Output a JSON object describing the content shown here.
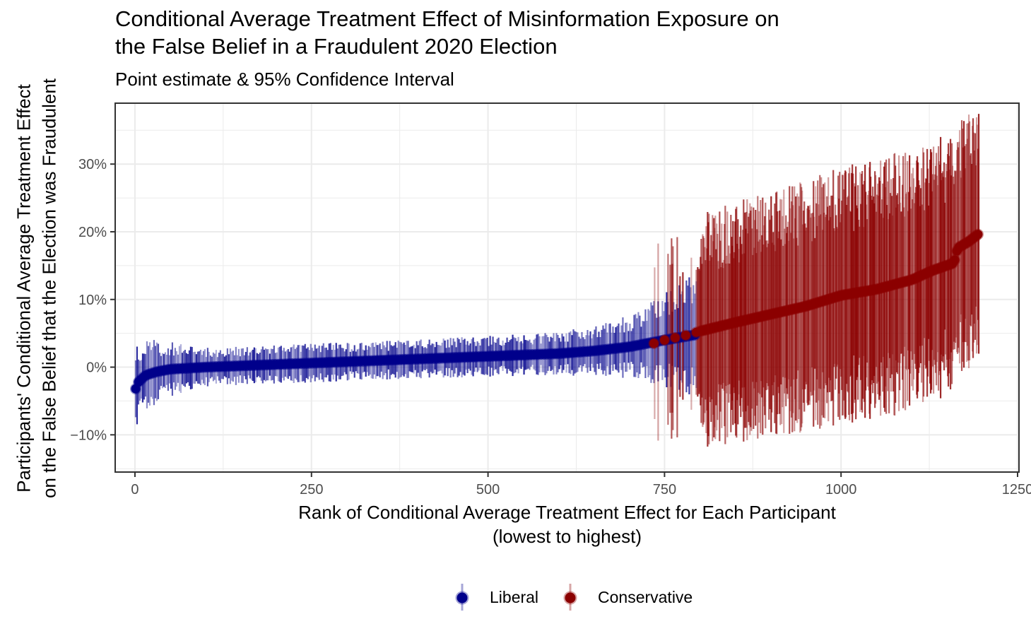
{
  "chart_data": {
    "type": "scatter",
    "title_lines": [
      "Conditional Average Treatment Effect of Misinformation Exposure on",
      "the False Belief in a Fraudulent 2020 Election"
    ],
    "subtitle": "Point estimate & 95% Confidence Interval",
    "xlabel_lines": [
      "Rank of Conditional Average Treatment Effect for Each Participant",
      "(lowest to highest)"
    ],
    "ylabel_lines": [
      "Participants' Conditional Average Treatment Effect",
      "on the False Belief that the Election was Fraudulent"
    ],
    "xlim": [
      -28,
      1252
    ],
    "ylim": [
      -15.5,
      39
    ],
    "x_ticks": [
      0,
      250,
      500,
      750,
      1000,
      1250
    ],
    "x_tick_labels": [
      "0",
      "250",
      "500",
      "750",
      "1000",
      "1250"
    ],
    "y_ticks": [
      -10,
      0,
      10,
      20,
      30
    ],
    "y_tick_labels": [
      "−10%",
      "0%",
      "10%",
      "20%",
      "30%"
    ],
    "grid": true,
    "legend_position": "bottom",
    "colors": {
      "liberal": "#00008B",
      "conservative": "#8B0000"
    },
    "series": [
      {
        "name": "Liberal",
        "rank_range": [
          1,
          795
        ],
        "estimate_anchors": {
          "x": [
            1,
            5,
            15,
            30,
            50,
            100,
            200,
            300,
            400,
            500,
            600,
            650,
            700,
            750,
            795
          ],
          "y": [
            -3.2,
            -2.2,
            -1.2,
            -0.7,
            -0.3,
            0,
            0.4,
            0.8,
            1.2,
            1.6,
            2.0,
            2.4,
            3.0,
            4.0,
            4.8
          ]
        },
        "ci_halfwidth_anchors": {
          "x": [
            1,
            5,
            50,
            100,
            400,
            600,
            700,
            795
          ],
          "y": [
            6,
            5,
            3.5,
            2.5,
            2.5,
            2.8,
            4,
            8
          ]
        }
      },
      {
        "name": "Conservative",
        "rank_range": [
          735,
          1195
        ],
        "estimate_anchors": {
          "x": [
            735,
            750,
            780,
            800,
            850,
            900,
            950,
            1000,
            1050,
            1100,
            1130,
            1160,
            1165,
            1180,
            1195
          ],
          "y": [
            3.5,
            4.0,
            4.7,
            5.3,
            6.6,
            7.8,
            9.0,
            10.6,
            11.5,
            12.9,
            14.3,
            15.4,
            17.6,
            18.5,
            19.7
          ]
        },
        "ci_halfwidth_anchors": {
          "x": [
            735,
            800,
            900,
            1000,
            1100,
            1195
          ],
          "y": [
            14,
            15,
            16,
            16.5,
            17,
            17
          ]
        }
      }
    ]
  }
}
